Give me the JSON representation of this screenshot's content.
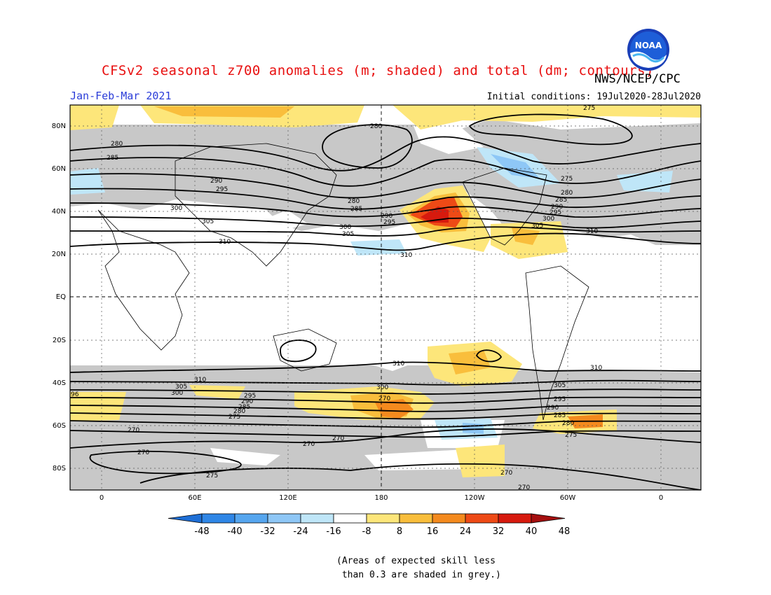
{
  "header": {
    "title": "CFSv2 seasonal z700 anomalies (m; shaded) and total (dm; contours)",
    "agency": "NWS/NCEP/CPC",
    "season": "Jan-Feb-Mar 2021",
    "initial_conditions": "Initial conditions: 19Jul2020-28Jul2020",
    "logo_text": "NOAA"
  },
  "axes": {
    "lat_labels": [
      "80N",
      "60N",
      "40N",
      "20N",
      "EQ",
      "20S",
      "40S",
      "60S",
      "80S"
    ],
    "lon_labels": [
      "0",
      "60E",
      "120E",
      "180",
      "120W",
      "60W",
      "0"
    ]
  },
  "colorbar": {
    "labels": [
      "-48",
      "-40",
      "-32",
      "-24",
      "-16",
      "-8",
      "8",
      "16",
      "24",
      "32",
      "40",
      "48"
    ],
    "colors": [
      "#1e6fd6",
      "#2f86e6",
      "#56a6ef",
      "#8ec7f6",
      "#bfe6f8",
      "#ffffff",
      "#fde67a",
      "#f9be3c",
      "#f48a1e",
      "#ee4a16",
      "#d71a0e",
      "#a50f0f"
    ]
  },
  "contour_labels": [
    "275",
    "280",
    "280",
    "285",
    "290",
    "295",
    "300",
    "305",
    "310",
    "280",
    "285",
    "290",
    "295",
    "300",
    "305",
    "310",
    "310",
    "275",
    "280",
    "285",
    "290",
    "295",
    "300",
    "305",
    "310",
    "310",
    "305",
    "300",
    "295",
    "290",
    "285",
    "280",
    "275",
    "270",
    "270",
    "270",
    "270",
    "275",
    "270",
    "270",
    "310",
    "305",
    "300",
    "295",
    "290",
    "285",
    "280",
    "275",
    "270",
    "96"
  ],
  "skill_note": "(Areas of expected skill less\n than 0.3 are shaded in grey.)",
  "colors": {
    "skill_grey": "#c8c8c8",
    "title_red": "#e81010",
    "season_blue": "#2a3cd8"
  }
}
